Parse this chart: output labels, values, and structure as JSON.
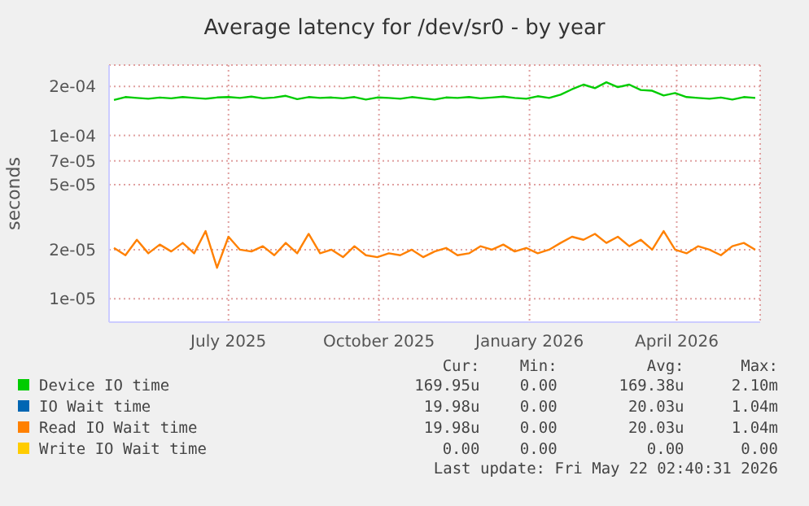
{
  "chart_data": {
    "type": "line",
    "title": "Average latency for /dev/sr0 - by year",
    "ylabel": "seconds",
    "x": [
      "2025-04-22",
      "2025-04-29",
      "2025-05-06",
      "2025-05-13",
      "2025-05-20",
      "2025-05-27",
      "2025-06-03",
      "2025-06-10",
      "2025-06-17",
      "2025-06-24",
      "2025-07-01",
      "2025-07-08",
      "2025-07-15",
      "2025-07-22",
      "2025-07-29",
      "2025-08-05",
      "2025-08-12",
      "2025-08-19",
      "2025-08-26",
      "2025-09-02",
      "2025-09-09",
      "2025-09-16",
      "2025-09-23",
      "2025-09-30",
      "2025-10-07",
      "2025-10-14",
      "2025-10-21",
      "2025-10-28",
      "2025-11-04",
      "2025-11-11",
      "2025-11-18",
      "2025-11-25",
      "2025-12-02",
      "2025-12-09",
      "2025-12-16",
      "2025-12-23",
      "2025-12-30",
      "2026-01-06",
      "2026-01-13",
      "2026-01-20",
      "2026-01-27",
      "2026-02-03",
      "2026-02-10",
      "2026-02-17",
      "2026-02-24",
      "2026-03-03",
      "2026-03-10",
      "2026-03-17",
      "2026-03-24",
      "2026-03-31",
      "2026-04-07",
      "2026-04-14",
      "2026-04-21",
      "2026-04-28",
      "2026-05-05",
      "2026-05-12",
      "2026-05-19"
    ],
    "series": [
      {
        "name": "Device IO time",
        "color": "#00cc00",
        "values": [
          0.000165,
          0.000172,
          0.00017,
          0.000168,
          0.000171,
          0.000169,
          0.000172,
          0.00017,
          0.000168,
          0.000171,
          0.000172,
          0.00017,
          0.000173,
          0.000169,
          0.000171,
          0.000175,
          0.000167,
          0.000172,
          0.00017,
          0.000171,
          0.000169,
          0.000172,
          0.000166,
          0.000171,
          0.00017,
          0.000168,
          0.000172,
          0.000169,
          0.000166,
          0.000171,
          0.00017,
          0.000172,
          0.000169,
          0.000171,
          0.000173,
          0.00017,
          0.000168,
          0.000174,
          0.00017,
          0.000178,
          0.000192,
          0.000205,
          0.000195,
          0.000212,
          0.000198,
          0.000205,
          0.00019,
          0.000188,
          0.000176,
          0.000182,
          0.000172,
          0.00017,
          0.000168,
          0.000171,
          0.000166,
          0.000172,
          0.00017
        ]
      },
      {
        "name": "IO Wait time",
        "color": "#0066b3",
        "values": [
          null,
          null,
          null,
          null,
          null,
          null,
          null,
          null,
          null,
          null,
          null,
          null,
          null,
          null,
          null,
          null,
          null,
          null,
          null,
          null,
          null,
          null,
          null,
          null,
          null,
          null,
          null,
          null,
          null,
          null,
          null,
          null,
          null,
          null,
          null,
          null,
          null,
          null,
          null,
          null,
          null,
          null,
          null,
          null,
          null,
          null,
          null,
          null,
          null,
          null,
          null,
          null,
          null,
          null,
          null,
          null,
          null
        ]
      },
      {
        "name": "Read IO Wait time",
        "color": "#ff8000",
        "values": [
          2.05e-05,
          1.85e-05,
          2.3e-05,
          1.9e-05,
          2.15e-05,
          1.95e-05,
          2.2e-05,
          1.9e-05,
          2.6e-05,
          1.55e-05,
          2.4e-05,
          2e-05,
          1.95e-05,
          2.1e-05,
          1.85e-05,
          2.2e-05,
          1.9e-05,
          2.5e-05,
          1.9e-05,
          2e-05,
          1.8e-05,
          2.1e-05,
          1.85e-05,
          1.8e-05,
          1.9e-05,
          1.85e-05,
          2e-05,
          1.8e-05,
          1.95e-05,
          2.05e-05,
          1.85e-05,
          1.9e-05,
          2.1e-05,
          2e-05,
          2.15e-05,
          1.95e-05,
          2.05e-05,
          1.9e-05,
          2e-05,
          2.2e-05,
          2.4e-05,
          2.3e-05,
          2.5e-05,
          2.2e-05,
          2.4e-05,
          2.1e-05,
          2.3e-05,
          2e-05,
          2.6e-05,
          2e-05,
          1.9e-05,
          2.1e-05,
          2e-05,
          1.85e-05,
          2.1e-05,
          2.2e-05,
          2e-05
        ]
      },
      {
        "name": "Write IO Wait time",
        "color": "#ffcc00",
        "values": [
          null,
          null,
          null,
          null,
          null,
          null,
          null,
          null,
          null,
          null,
          null,
          null,
          null,
          null,
          null,
          null,
          null,
          null,
          null,
          null,
          null,
          null,
          null,
          null,
          null,
          null,
          null,
          null,
          null,
          null,
          null,
          null,
          null,
          null,
          null,
          null,
          null,
          null,
          null,
          null,
          null,
          null,
          null,
          null,
          null,
          null,
          null,
          null,
          null,
          null,
          null,
          null,
          null,
          null,
          null,
          null,
          null
        ]
      }
    ],
    "xlim": [
      "2025-04-19",
      "2026-05-22"
    ],
    "xticks": [
      {
        "value": "2025-07-01",
        "label": "July 2025"
      },
      {
        "value": "2025-10-01",
        "label": "October 2025"
      },
      {
        "value": "2026-01-01",
        "label": "January 2026"
      },
      {
        "value": "2026-04-01",
        "label": "April 2026"
      }
    ],
    "ylim": [
      7.2e-06,
      0.00027
    ],
    "yticks": [
      {
        "value": 1e-05,
        "label": "1e-05"
      },
      {
        "value": 2e-05,
        "label": "2e-05"
      },
      {
        "value": 5e-05,
        "label": "5e-05"
      },
      {
        "value": 7e-05,
        "label": "7e-05"
      },
      {
        "value": 0.0001,
        "label": "1e-04"
      },
      {
        "value": 0.0002,
        "label": "2e-04"
      }
    ],
    "log": true,
    "grid": true,
    "legend": "bottom",
    "marker": "none",
    "line_style": "solid",
    "annotations": [
      "Cur:",
      "Min:",
      "Avg:",
      "Max:",
      "169.95u",
      "0.00",
      "169.38u",
      "2.10m",
      "19.98u",
      "0.00",
      "20.03u",
      "1.04m",
      "19.98u",
      "0.00",
      "20.03u",
      "1.04m",
      "0.00",
      "0.00",
      "0.00",
      "0.00",
      "Last update: Fri May 22 02:40:31 2026"
    ]
  }
}
